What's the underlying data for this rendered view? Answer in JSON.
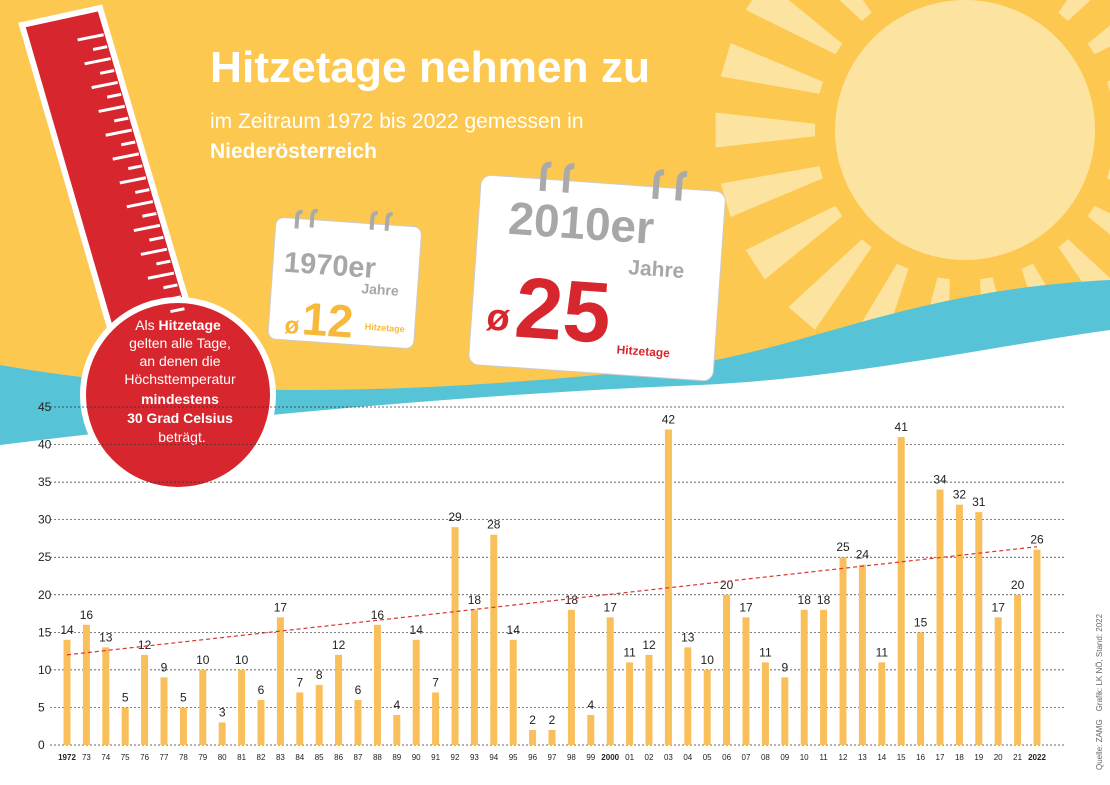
{
  "title": "Hitzetage nehmen zu",
  "subtitle": "im Zeitraum 1972 bis 2022 gemessen in",
  "region": "Niederösterreich",
  "callouts": [
    {
      "period": "1970er",
      "unit": "Jahre",
      "symbol": "ø",
      "value": 12,
      "label": "Hitzetage"
    },
    {
      "period": "2010er",
      "unit": "Jahre",
      "symbol": "ø",
      "value": 25,
      "label": "Hitzetage"
    }
  ],
  "note": {
    "intro": "Als",
    "term": "Hitzetage",
    "body": [
      "gelten alle Tage,",
      "an denen die",
      "Höchsttemperatur"
    ],
    "emphasis": [
      "mindestens",
      "30 Grad Celsius"
    ],
    "end": "beträgt."
  },
  "source": "Quelle: ZAMG",
  "credit": "Grafik: LK NÖ, Stand: 2022",
  "chart_data": {
    "type": "bar",
    "categories": [
      "1972",
      "73",
      "74",
      "75",
      "76",
      "77",
      "78",
      "79",
      "80",
      "81",
      "82",
      "83",
      "84",
      "85",
      "86",
      "87",
      "88",
      "89",
      "90",
      "91",
      "92",
      "93",
      "94",
      "95",
      "96",
      "97",
      "98",
      "99",
      "2000",
      "01",
      "02",
      "03",
      "04",
      "05",
      "06",
      "07",
      "08",
      "09",
      "10",
      "11",
      "12",
      "13",
      "14",
      "15",
      "16",
      "17",
      "18",
      "19",
      "20",
      "21",
      "2022"
    ],
    "values": [
      14,
      16,
      13,
      5,
      12,
      9,
      5,
      10,
      3,
      10,
      6,
      17,
      7,
      8,
      12,
      6,
      16,
      4,
      14,
      7,
      29,
      18,
      28,
      14,
      2,
      2,
      18,
      4,
      17,
      11,
      12,
      42,
      13,
      10,
      20,
      17,
      11,
      9,
      18,
      18,
      25,
      24,
      11,
      41,
      15,
      34,
      32,
      31,
      17,
      20,
      26
    ],
    "color": "#f9bf5a",
    "ylim": [
      0,
      45
    ],
    "yticks": [
      0,
      5,
      10,
      15,
      20,
      25,
      30,
      35,
      40,
      45
    ],
    "grid": true,
    "trend": {
      "start": 12,
      "end": 26.4,
      "color": "#d9362b"
    }
  }
}
